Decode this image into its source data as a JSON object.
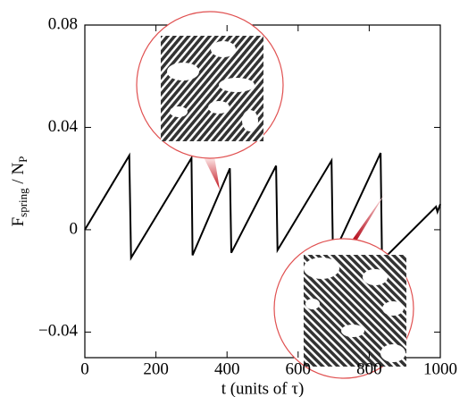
{
  "chart_data": {
    "type": "line",
    "xlabel": "t  (units of τ)",
    "ylabel": [
      "F",
      "spring",
      " / N",
      "P"
    ],
    "x": [
      0,
      125,
      130,
      300,
      303,
      408,
      412,
      538,
      542,
      694,
      698,
      832,
      836,
      988,
      992,
      1000
    ],
    "values": [
      0,
      0.029,
      -0.011,
      0.028,
      -0.01,
      0.024,
      -0.009,
      0.025,
      -0.008,
      0.027,
      -0.01,
      0.03,
      -0.012,
      0.009,
      0.007,
      0.01
    ],
    "color": "#000000",
    "xlim": [
      0,
      1000
    ],
    "xticks": [
      0,
      200,
      400,
      600,
      800,
      1000
    ],
    "ylim": [
      -0.05,
      0.08
    ],
    "yticks": [
      {
        "value": -0.04,
        "label": "−0.04"
      },
      0,
      0.04,
      0.08
    ],
    "grid": false
  }
}
